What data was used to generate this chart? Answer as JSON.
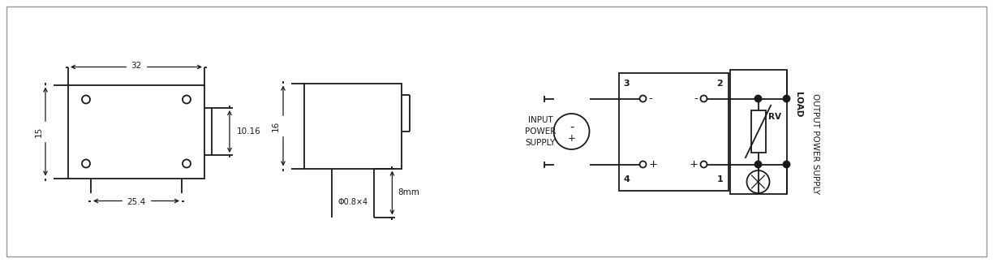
{
  "bg_color": "#ffffff",
  "lc": "#1a1a1a",
  "fc": "#1a1a1a",
  "fs": 7.5,
  "lw": 1.3,
  "border_color": "#aaaaaa",
  "dim1_label_32": "32",
  "dim1_label_15": "15",
  "dim1_label_1016": "10.16",
  "dim1_label_254": "25.4",
  "dim2_label_16": "16",
  "dim2_label_phi": "Φ0.8×4",
  "dim2_label_8mm": "8mm",
  "label_input": [
    "INPUT",
    "POWER",
    "SUPPLY"
  ],
  "label_rv": "RV",
  "label_load": "LOAD",
  "label_output": "OUTPUT POWER SUPPLY"
}
